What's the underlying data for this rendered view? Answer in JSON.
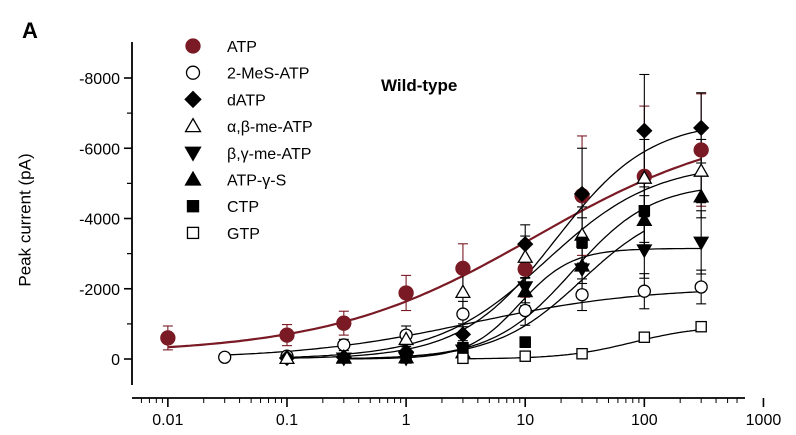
{
  "panel_label": "A",
  "chart_data": {
    "type": "scatter",
    "title": "",
    "subtitle": "Wild-type",
    "xlabel": "",
    "ylabel": "Peak current (pA)",
    "xscale": "log",
    "xlim": [
      0.005,
      700
    ],
    "ylim": [
      0,
      -8800
    ],
    "x_ticks": [
      0.01,
      0.1,
      1,
      10,
      100,
      1000
    ],
    "x_tick_labels": [
      "0.01",
      "0.1",
      "1",
      "10",
      "100",
      "1000"
    ],
    "y_ticks": [
      0,
      -2000,
      -4000,
      -6000,
      -8000
    ],
    "y_tick_labels": [
      "0",
      "-2000",
      "-4000",
      "-6000",
      "-8000"
    ],
    "legend_position": "top-left",
    "series": [
      {
        "name": "ATP",
        "marker": "circle-filled",
        "color": "#7a1a24",
        "x": [
          0.01,
          0.1,
          0.3,
          1,
          3,
          10,
          30,
          100,
          300
        ],
        "y": [
          -600,
          -680,
          -1020,
          -1880,
          -2580,
          -2560,
          -4650,
          -5200,
          -5950
        ],
        "err": [
          340,
          300,
          340,
          500,
          700,
          800,
          1700,
          2000,
          1600
        ],
        "fit": {
          "bottom": -150,
          "top": -6800,
          "ec50": 12,
          "hill": 0.5
        }
      },
      {
        "name": "2-MeS-ATP",
        "marker": "circle-open",
        "color": "#000000",
        "x": [
          0.03,
          0.1,
          0.3,
          1,
          3,
          10,
          30,
          100,
          300
        ],
        "y": [
          -50,
          -80,
          -400,
          -680,
          -1280,
          -1380,
          -1830,
          -1930,
          -2050
        ],
        "err": [
          60,
          90,
          160,
          260,
          360,
          420,
          450,
          500,
          480
        ],
        "fit": {
          "bottom": 0,
          "top": -2050,
          "ec50": 3.5,
          "hill": 0.6
        }
      },
      {
        "name": "dATP",
        "marker": "diamond-filled",
        "color": "#000000",
        "x": [
          0.1,
          0.3,
          1,
          3,
          10,
          30,
          100,
          300
        ],
        "y": [
          -30,
          -50,
          -200,
          -700,
          -3270,
          -4700,
          -6500,
          -6580
        ],
        "err": [
          60,
          80,
          150,
          300,
          550,
          1300,
          1600,
          1000
        ],
        "fit": {
          "bottom": 0,
          "top": -6800,
          "ec50": 18,
          "hill": 1.1
        }
      },
      {
        "name": "α,β-me-ATP",
        "marker": "triangle-up-open",
        "color": "#000000",
        "x": [
          0.1,
          0.3,
          1,
          3,
          10,
          30,
          100,
          300
        ],
        "y": [
          -20,
          -40,
          -560,
          -1900,
          -2900,
          -3530,
          -5150,
          -5350
        ],
        "err": [
          50,
          60,
          200,
          600,
          600,
          800,
          1100,
          900
        ],
        "fit": {
          "bottom": 0,
          "top": -5600,
          "ec50": 15,
          "hill": 0.95
        }
      },
      {
        "name": "β,γ-me-ATP",
        "marker": "triangle-down-filled",
        "color": "#000000",
        "x": [
          0.3,
          1,
          3,
          10,
          30,
          100,
          300
        ],
        "y": [
          -20,
          -20,
          -250,
          -2050,
          -2560,
          -3100,
          -3320
        ],
        "err": [
          50,
          60,
          200,
          450,
          600,
          800,
          900
        ],
        "fit": {
          "bottom": 0,
          "top": -3150,
          "ec50": 9,
          "hill": 2
        }
      },
      {
        "name": "ATP-γ-S",
        "marker": "triangle-up-filled",
        "color": "#000000",
        "x": [
          0.3,
          1,
          3,
          10,
          30,
          100,
          300
        ],
        "y": [
          -30,
          -40,
          -180,
          -1920,
          -2650,
          -3950,
          -4620
        ],
        "err": [
          50,
          60,
          150,
          400,
          500,
          700,
          600
        ],
        "fit": {
          "bottom": 0,
          "top": -5000,
          "ec50": 25,
          "hill": 1.3
        }
      },
      {
        "name": "CTP",
        "marker": "square-filled",
        "color": "#000000",
        "x": [
          1,
          3,
          10,
          30,
          100
        ],
        "y": [
          -30,
          -320,
          -480,
          -3320,
          -4220
        ],
        "err": [
          50,
          200,
          150,
          700,
          900
        ],
        "fit": {
          "bottom": 0,
          "top": -4500,
          "ec50": 30,
          "hill": 1.2
        }
      },
      {
        "name": "GTP",
        "marker": "square-open",
        "color": "#000000",
        "x": [
          3,
          10,
          30,
          100,
          300
        ],
        "y": [
          -20,
          -80,
          -150,
          -620,
          -920
        ],
        "err": [
          30,
          40,
          60,
          100,
          120
        ],
        "fit": {
          "bottom": 0,
          "top": -950,
          "ec50": 80,
          "hill": 1.5
        }
      }
    ]
  }
}
